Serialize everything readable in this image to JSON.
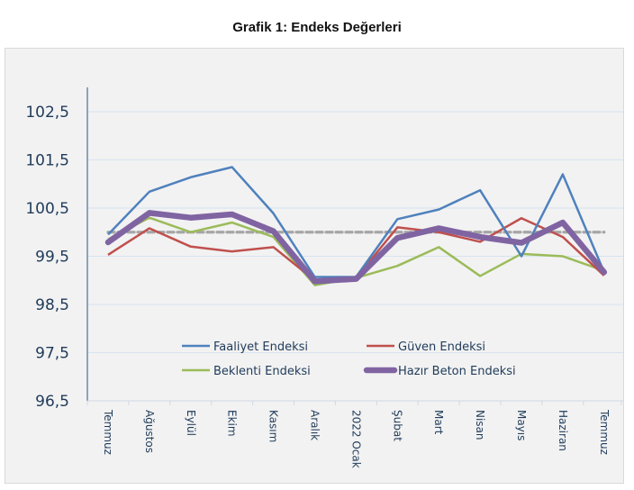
{
  "page": {
    "title": "Grafik 1: Endeks Değerleri"
  },
  "chart_data": {
    "type": "line",
    "title": "Grafik 1: Endeks Değerleri",
    "xlabel": "",
    "ylabel": "",
    "ylim": [
      96.5,
      103.0
    ],
    "yticks": [
      96.5,
      97.5,
      98.5,
      99.5,
      100.5,
      101.5,
      102.5
    ],
    "ytick_labels": [
      "96,5",
      "97,5",
      "98,5",
      "99,5",
      "100,5",
      "101,5",
      "102,5"
    ],
    "grid": true,
    "legend_position": "bottom-center (inside plot)",
    "categories": [
      "Temmuz",
      "Ağustos",
      "Eylül",
      "Ekim",
      "Kasım",
      "Aralık",
      "2022 Ocak",
      "Şubat",
      "Mart",
      "Nisan",
      "Mayıs",
      "Haziran",
      "Temmuz"
    ],
    "reference_line": {
      "value": 100.0,
      "style": "dashed",
      "color": "#a6a6a6"
    },
    "series": [
      {
        "name": "Faaliyet Endeksi",
        "color": "#4f81bd",
        "values": [
          99.95,
          100.84,
          101.14,
          101.35,
          100.39,
          99.07,
          99.07,
          100.27,
          100.47,
          100.87,
          99.5,
          101.2,
          99.17
        ]
      },
      {
        "name": "Güven Endeksi",
        "color": "#c0504d",
        "values": [
          99.53,
          100.08,
          99.7,
          99.6,
          99.69,
          99.0,
          99.05,
          100.1,
          100.0,
          99.8,
          100.29,
          99.9,
          99.1
        ]
      },
      {
        "name": "Beklenti Endeksi",
        "color": "#9bbb59",
        "values": [
          99.85,
          100.3,
          100.0,
          100.2,
          99.9,
          98.9,
          99.05,
          99.3,
          99.69,
          99.09,
          99.55,
          99.5,
          99.2
        ]
      },
      {
        "name": "Hazır Beton Endeksi",
        "color": "#8064a2",
        "values": [
          99.79,
          100.4,
          100.3,
          100.37,
          100.02,
          98.98,
          99.03,
          99.88,
          100.08,
          99.9,
          99.78,
          100.2,
          99.17
        ]
      }
    ]
  }
}
